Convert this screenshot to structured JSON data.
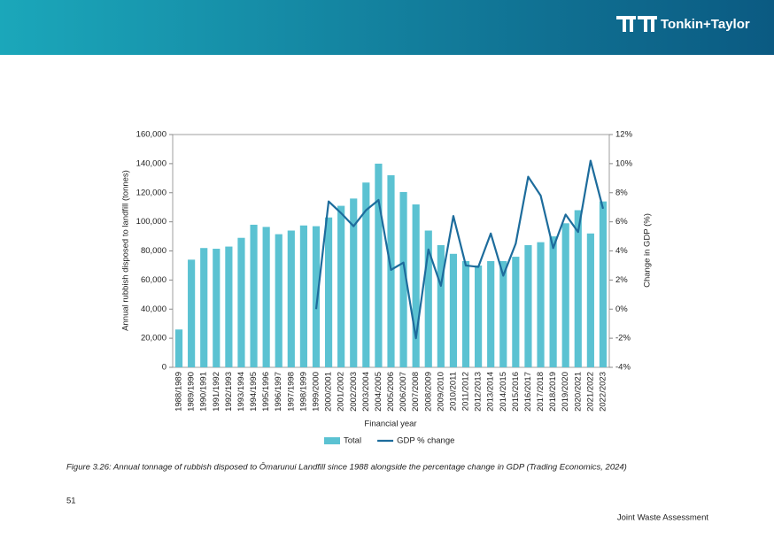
{
  "header": {
    "logo": "Tonkin+Taylor"
  },
  "chart_data": {
    "type": "bar",
    "x_label": "Financial year",
    "y_label": "Annual rubbish disposed to landfill (tonnes)",
    "y2_label": "Change in GDP (%)",
    "categories": [
      "1988/1989",
      "1989/1990",
      "1990/1991",
      "1991/1992",
      "1992/1993",
      "1993/1994",
      "1994/1995",
      "1995/1996",
      "1996/1997",
      "1997/1998",
      "1998/1999",
      "1999/2000",
      "2000/2001",
      "2001/2002",
      "2002/2003",
      "2003/2004",
      "2004/2005",
      "2005/2006",
      "2006/2007",
      "2007/2008",
      "2008/2009",
      "2009/2010",
      "2010/2011",
      "2011/2012",
      "2012/2013",
      "2013/2014",
      "2014/2015",
      "2015/2016",
      "2016/2017",
      "2017/2018",
      "2018/2019",
      "2019/2020",
      "2020/2021",
      "2021/2022",
      "2022/2023"
    ],
    "series": [
      {
        "name": "Total",
        "type": "bar",
        "color": "#5bc2d2",
        "values": [
          26000,
          74000,
          82000,
          81500,
          83000,
          89000,
          98000,
          96500,
          91500,
          94000,
          97500,
          97000,
          103000,
          111000,
          116000,
          127000,
          140000,
          132000,
          120500,
          112000,
          94000,
          84000,
          78000,
          73000,
          70000,
          73000,
          73000,
          76000,
          84000,
          86000,
          90000,
          99000,
          108000,
          92000,
          114000
        ]
      },
      {
        "name": "GDP % change",
        "type": "line",
        "axis": "y2",
        "color": "#1d6c9c",
        "values": [
          null,
          null,
          null,
          null,
          null,
          null,
          null,
          null,
          null,
          null,
          null,
          0,
          7.4,
          6.6,
          5.7,
          6.8,
          7.5,
          2.7,
          3.2,
          -2.0,
          4.1,
          1.6,
          6.4,
          3.0,
          2.9,
          5.2,
          2.3,
          4.5,
          9.1,
          7.8,
          4.2,
          6.5,
          5.3,
          10.2,
          6.9
        ]
      }
    ],
    "ylim": [
      0,
      160000
    ],
    "yticks": [
      0,
      {
        "value": 20000,
        "label": "20,000"
      },
      {
        "value": 40000,
        "label": "40,000"
      },
      {
        "value": 60000,
        "label": "60,000"
      },
      {
        "value": 80000,
        "label": "80,000"
      },
      {
        "value": 100000,
        "label": "100,000"
      },
      {
        "value": 120000,
        "label": "120,000"
      },
      {
        "value": 140000,
        "label": "140,000"
      },
      {
        "value": 160000,
        "label": "160,000"
      }
    ],
    "y2lim": [
      -4,
      12
    ],
    "y2ticks": [
      {
        "value": -4,
        "label": "-4%"
      },
      {
        "value": -2,
        "label": "-2%"
      },
      {
        "value": 0,
        "label": "0%"
      },
      {
        "value": 2,
        "label": "2%"
      },
      {
        "value": 4,
        "label": "4%"
      },
      {
        "value": 6,
        "label": "6%"
      },
      {
        "value": 8,
        "label": "8%"
      },
      {
        "value": 10,
        "label": "10%"
      },
      {
        "value": 12,
        "label": "12%"
      }
    ],
    "legend": "bottom"
  },
  "caption": "Figure 3.26: Annual tonnage of rubbish disposed to Ōmarunui Landfill since 1988 alongside the percentage change in GDP (Trading Economics, 2024)",
  "page_number": "51",
  "footer": "Joint Waste Assessment"
}
